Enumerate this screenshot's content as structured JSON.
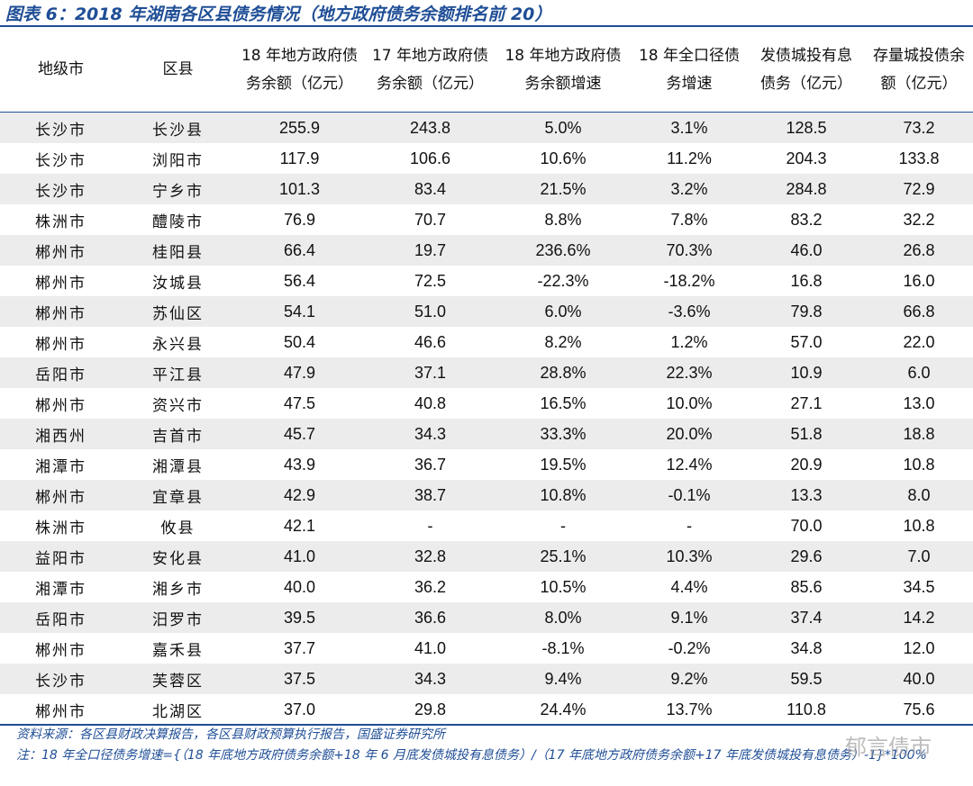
{
  "header": {
    "title": "图表 6：2018 年湖南各区县债务情况（地方政府债务余额排名前 20）"
  },
  "table": {
    "columns": [
      "地级市",
      "区县",
      "18 年地方政府债务余额（亿元）",
      "17 年地方政府债务余额（亿元）",
      "18 年地方政府债务余额增速",
      "18 年全口径债务增速",
      "发债城投有息债务（亿元）",
      "存量城投债余额（亿元）"
    ],
    "rows": [
      [
        "长沙市",
        "长沙县",
        "255.9",
        "243.8",
        "5.0%",
        "3.1%",
        "128.5",
        "73.2"
      ],
      [
        "长沙市",
        "浏阳市",
        "117.9",
        "106.6",
        "10.6%",
        "11.2%",
        "204.3",
        "133.8"
      ],
      [
        "长沙市",
        "宁乡市",
        "101.3",
        "83.4",
        "21.5%",
        "3.2%",
        "284.8",
        "72.9"
      ],
      [
        "株洲市",
        "醴陵市",
        "76.9",
        "70.7",
        "8.8%",
        "7.8%",
        "83.2",
        "32.2"
      ],
      [
        "郴州市",
        "桂阳县",
        "66.4",
        "19.7",
        "236.6%",
        "70.3%",
        "46.0",
        "26.8"
      ],
      [
        "郴州市",
        "汝城县",
        "56.4",
        "72.5",
        "-22.3%",
        "-18.2%",
        "16.8",
        "16.0"
      ],
      [
        "郴州市",
        "苏仙区",
        "54.1",
        "51.0",
        "6.0%",
        "-3.6%",
        "79.8",
        "66.8"
      ],
      [
        "郴州市",
        "永兴县",
        "50.4",
        "46.6",
        "8.2%",
        "1.2%",
        "57.0",
        "22.0"
      ],
      [
        "岳阳市",
        "平江县",
        "47.9",
        "37.1",
        "28.8%",
        "22.3%",
        "10.9",
        "6.0"
      ],
      [
        "郴州市",
        "资兴市",
        "47.5",
        "40.8",
        "16.5%",
        "10.0%",
        "27.1",
        "13.0"
      ],
      [
        "湘西州",
        "吉首市",
        "45.7",
        "34.3",
        "33.3%",
        "20.0%",
        "51.8",
        "18.8"
      ],
      [
        "湘潭市",
        "湘潭县",
        "43.9",
        "36.7",
        "19.5%",
        "12.4%",
        "20.9",
        "10.8"
      ],
      [
        "郴州市",
        "宜章县",
        "42.9",
        "38.7",
        "10.8%",
        "-0.1%",
        "13.3",
        "8.0"
      ],
      [
        "株洲市",
        "攸县",
        "42.1",
        "-",
        "-",
        "-",
        "70.0",
        "10.8"
      ],
      [
        "益阳市",
        "安化县",
        "41.0",
        "32.8",
        "25.1%",
        "10.3%",
        "29.6",
        "7.0"
      ],
      [
        "湘潭市",
        "湘乡市",
        "40.0",
        "36.2",
        "10.5%",
        "4.4%",
        "85.6",
        "34.5"
      ],
      [
        "岳阳市",
        "汨罗市",
        "39.5",
        "36.6",
        "8.0%",
        "9.1%",
        "37.4",
        "14.2"
      ],
      [
        "郴州市",
        "嘉禾县",
        "37.7",
        "41.0",
        "-8.1%",
        "-0.2%",
        "34.8",
        "12.0"
      ],
      [
        "长沙市",
        "芙蓉区",
        "37.5",
        "34.3",
        "9.4%",
        "9.2%",
        "59.5",
        "40.0"
      ],
      [
        "郴州市",
        "北湖区",
        "37.0",
        "29.8",
        "24.4%",
        "13.7%",
        "110.8",
        "75.6"
      ]
    ]
  },
  "footer": {
    "source": "资料来源：各区县财政决算报告，各区县财政预算执行报告，国盛证券研究所",
    "note": "注：18 年全口径债务增速={（18 年底地方政府债务余额+18 年 6 月底发债城投有息债务）/（17 年底地方政府债务余额+17 年底发债城投有息债务）-1}*100%",
    "watermark": "郁言债市"
  }
}
